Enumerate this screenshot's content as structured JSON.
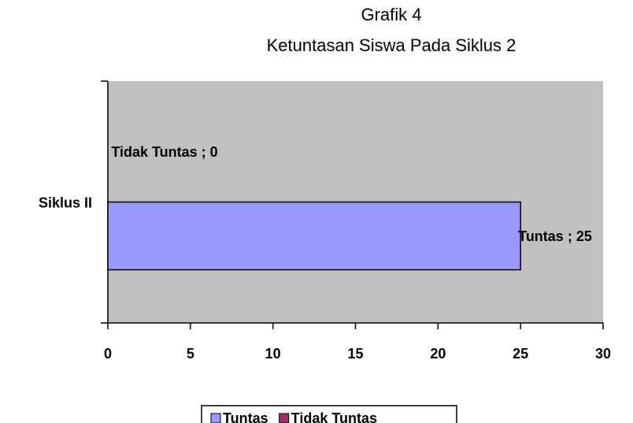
{
  "chart_data": {
    "type": "barh",
    "title": "Grafik 4",
    "subtitle": "Ketuntasan Siswa Pada Siklus 2",
    "categories": [
      "Siklus II"
    ],
    "series": [
      {
        "name": "Tuntas",
        "color": "#9999ff",
        "values": [
          25
        ],
        "value_labels": [
          "Tuntas ; 25"
        ]
      },
      {
        "name": "Tidak Tuntas",
        "color": "#993366",
        "values": [
          0
        ],
        "value_labels": [
          "Tidak Tuntas ; 0"
        ]
      }
    ],
    "xlim": [
      0,
      30
    ],
    "xticks": [
      0,
      5,
      10,
      15,
      20,
      25,
      30
    ],
    "plot_background": "#c0c0c0",
    "legend": "bottom"
  }
}
